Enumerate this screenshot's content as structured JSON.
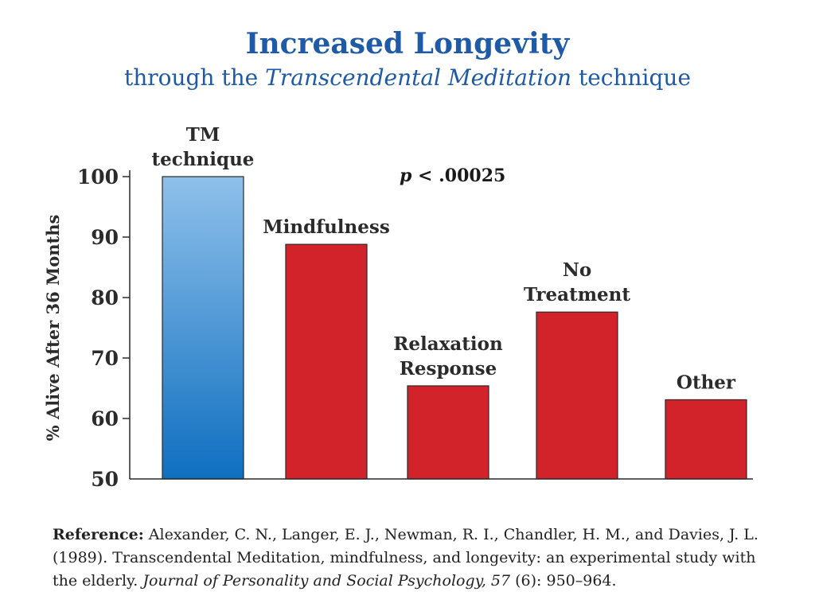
{
  "title": {
    "main": "Increased Longevity",
    "sub_prefix": "through the ",
    "sub_italic": "Transcendental Meditation",
    "sub_suffix": " technique"
  },
  "chart_data": {
    "type": "bar",
    "categories": [
      "TM technique",
      "Mindfulness",
      "Relaxation Response",
      "No Treatment",
      "Other"
    ],
    "category_label_lines": [
      [
        "TM",
        "technique"
      ],
      [
        "Mindfulness"
      ],
      [
        "Relaxation",
        "Response"
      ],
      [
        "No",
        "Treatment"
      ],
      [
        "Other"
      ]
    ],
    "values": [
      100,
      88.8,
      65.4,
      77.6,
      63.1
    ],
    "ylabel": "% Alive After 36 Months",
    "ylim": [
      50,
      100
    ],
    "yticks": [
      100,
      90,
      80,
      70,
      60,
      50
    ],
    "annotation_p": "p",
    "annotation_rest": " < .00025",
    "grid": false,
    "colors": {
      "tm_top": "#8fc0ea",
      "tm_bottom": "#0f6fc0",
      "other": "#d2232a",
      "outline": "#2a2a2a",
      "text": "#2b2b2b"
    }
  },
  "reference": {
    "label": "Reference:",
    "text_main": " Alexander, C. N., Langer, E. J., Newman, R. I., Chandler, H. M., and Davies, J. L. (1989). Transcendental Meditation, mindfulness, and longevity: an experimental study with the elderly. ",
    "journal": "Journal of Personality and Social Psychology, 57",
    "text_end": " (6): 950–964."
  }
}
